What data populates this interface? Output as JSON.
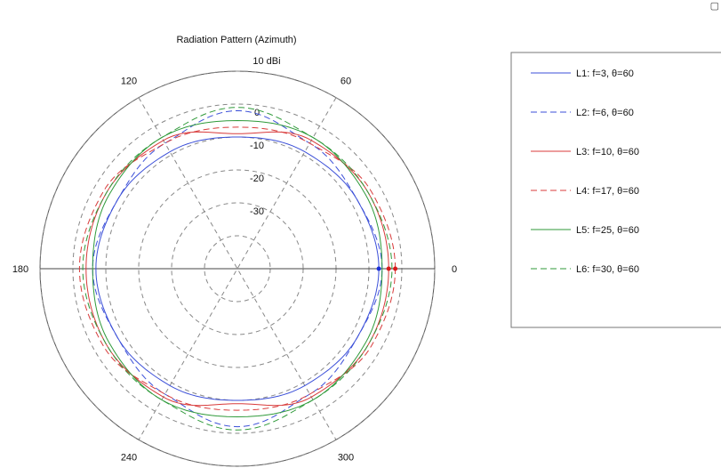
{
  "chart_data": {
    "type": "polar-line",
    "title": "Radiation Pattern (Azimuth)",
    "r_unit_label": "10 dBi",
    "r_range": [
      -50,
      10
    ],
    "r_ticks": [
      {
        "value": 0,
        "label": "0"
      },
      {
        "value": -10,
        "label": "-10"
      },
      {
        "value": -20,
        "label": "-20"
      },
      {
        "value": -30,
        "label": "-30"
      }
    ],
    "angle_ticks": [
      {
        "deg": 0,
        "label": "0"
      },
      {
        "deg": 60,
        "label": "60"
      },
      {
        "deg": 120,
        "label": "120"
      },
      {
        "deg": 180,
        "label": "180"
      },
      {
        "deg": 240,
        "label": "240"
      },
      {
        "deg": 300,
        "label": "300"
      }
    ],
    "grid": true,
    "legend_position": "right",
    "corner_mark": "▢",
    "series": [
      {
        "name": "L1: f=3, θ=60",
        "color": "#3b4fd8",
        "dash": "",
        "angles": [
          0,
          30,
          60,
          90,
          120,
          150,
          180,
          210,
          240,
          270,
          300,
          330,
          360
        ],
        "values": [
          -7,
          -8,
          -9,
          -10,
          -9,
          -8,
          -7,
          -8,
          -9,
          -10,
          -9,
          -8,
          -7
        ]
      },
      {
        "name": "L2: f=6, θ=60",
        "color": "#3b4fd8",
        "dash": "7,4",
        "angles": [
          0,
          30,
          60,
          90,
          120,
          150,
          180,
          210,
          240,
          270,
          300,
          330,
          360
        ],
        "values": [
          -6,
          -8,
          -6,
          -2,
          -6,
          -8,
          -6,
          -8,
          -6,
          -2,
          -6,
          -8,
          -6
        ]
      },
      {
        "name": "L3: f=10, θ=60",
        "color": "#d83b3b",
        "dash": "",
        "angles": [
          0,
          30,
          60,
          90,
          120,
          150,
          180,
          210,
          240,
          270,
          300,
          330,
          360
        ],
        "values": [
          -4,
          -4,
          -5,
          -9,
          -5,
          -4,
          -4,
          -4,
          -5,
          -9,
          -5,
          -4,
          -4
        ]
      },
      {
        "name": "L4: f=17, θ=60",
        "color": "#d83b3b",
        "dash": "7,4",
        "angles": [
          0,
          30,
          60,
          90,
          120,
          150,
          180,
          210,
          240,
          270,
          300,
          330,
          360
        ],
        "values": [
          -2,
          -3,
          -6,
          -7,
          -6,
          -3,
          -2,
          -3,
          -6,
          -7,
          -6,
          -3,
          -2
        ]
      },
      {
        "name": "L5: f=25, θ=60",
        "color": "#2f9a3a",
        "dash": "",
        "angles": [
          0,
          30,
          60,
          90,
          120,
          150,
          180,
          210,
          240,
          270,
          300,
          330,
          360
        ],
        "values": [
          -6,
          -5,
          -4,
          -5,
          -4,
          -5,
          -6,
          -5,
          -4,
          -5,
          -4,
          -5,
          -6
        ]
      },
      {
        "name": "L6: f=30, θ=60",
        "color": "#2f9a3a",
        "dash": "7,4",
        "angles": [
          0,
          30,
          60,
          90,
          120,
          150,
          180,
          210,
          240,
          270,
          300,
          330,
          360
        ],
        "values": [
          -3,
          -4,
          -4,
          -1,
          -4,
          -4,
          -3,
          -4,
          -4,
          -1,
          -4,
          -4,
          -3
        ]
      }
    ],
    "markers": [
      {
        "deg": 0,
        "value": -7,
        "color": "#1a2fd8"
      },
      {
        "deg": 0,
        "value": -4,
        "color": "#d81a1a"
      },
      {
        "deg": 0,
        "value": -2,
        "color": "#d81a1a"
      }
    ]
  }
}
